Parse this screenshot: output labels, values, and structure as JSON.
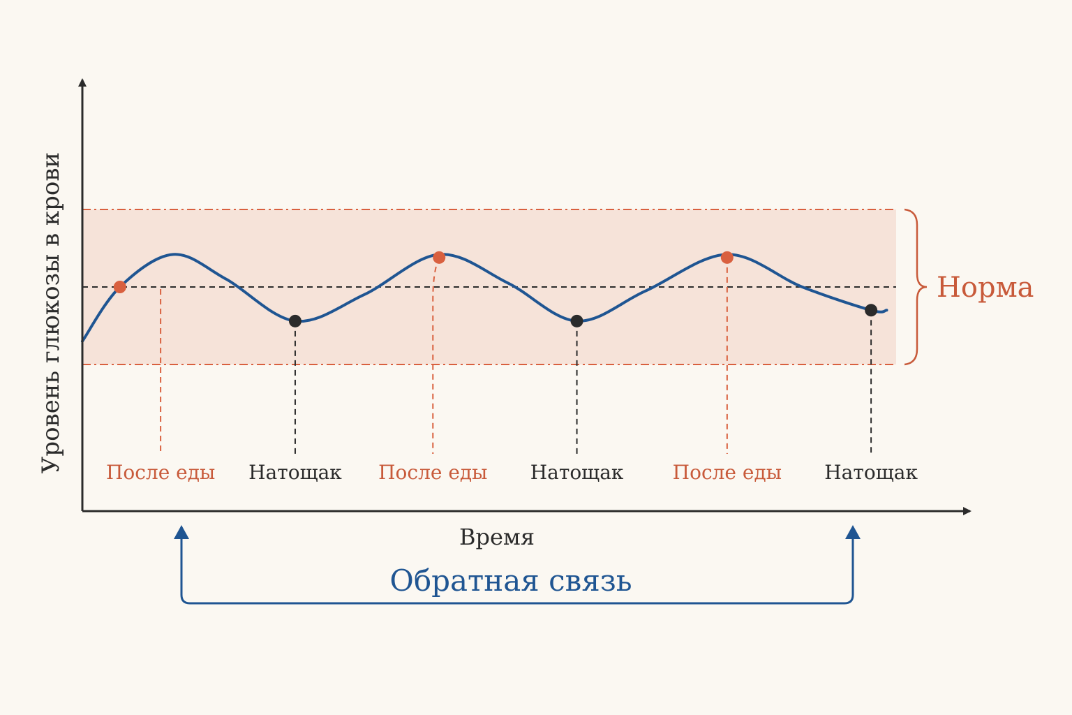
{
  "chart_data": {
    "type": "line",
    "ylabel": "Уровень глюкозы в крови",
    "xlabel": "Время",
    "band": {
      "label": "Норма",
      "y_range": [
        -1.0,
        1.0
      ],
      "center_line": 0.0
    },
    "series": [
      {
        "x": [
          0.0,
          0.6,
          1.0,
          1.5,
          2.0,
          2.5,
          3.0,
          3.5,
          4.0,
          4.5,
          5.0,
          5.5,
          6.0,
          6.5,
          6.8
        ],
        "y": [
          -0.7,
          0.0,
          0.4,
          0.5,
          0.2,
          -0.25,
          -0.5,
          -0.3,
          0.15,
          0.5,
          0.4,
          -0.15,
          -0.45,
          -0.2,
          0.2
        ]
      }
    ],
    "markers": [
      {
        "label": "После еды",
        "kind": "after_meal",
        "line_x": 1.25,
        "point": {
          "x": 0.6,
          "y": 0.0
        }
      },
      {
        "label": "Натощак",
        "kind": "fasting",
        "line_x": 3.4,
        "point": {
          "x": 3.4,
          "y": -0.44
        }
      },
      {
        "label": "После еды",
        "kind": "after_meal",
        "line_x": 5.6,
        "point": {
          "x": 5.7,
          "y": 0.38
        }
      },
      {
        "label": "Натощак",
        "kind": "fasting",
        "line_x": 7.9,
        "point": {
          "x": 7.9,
          "y": -0.44
        }
      },
      {
        "label": "После еды",
        "kind": "after_meal",
        "line_x": 10.3,
        "point": {
          "x": 10.3,
          "y": 0.38
        }
      },
      {
        "label": "Натощак",
        "kind": "fasting",
        "line_x": 12.6,
        "point": {
          "x": 12.6,
          "y": -0.3
        }
      }
    ],
    "grid": false,
    "legend": "none"
  },
  "feedback": {
    "label": "Обратная связь"
  },
  "colors": {
    "background": "#fbf8f2",
    "band_fill": "#f6e3d9",
    "band_border": "#d9603f",
    "accent_red": "#c85a3a",
    "curve_blue": "#1f5592",
    "axis": "#2b2b2b",
    "text_dark": "#2b2b2b"
  }
}
